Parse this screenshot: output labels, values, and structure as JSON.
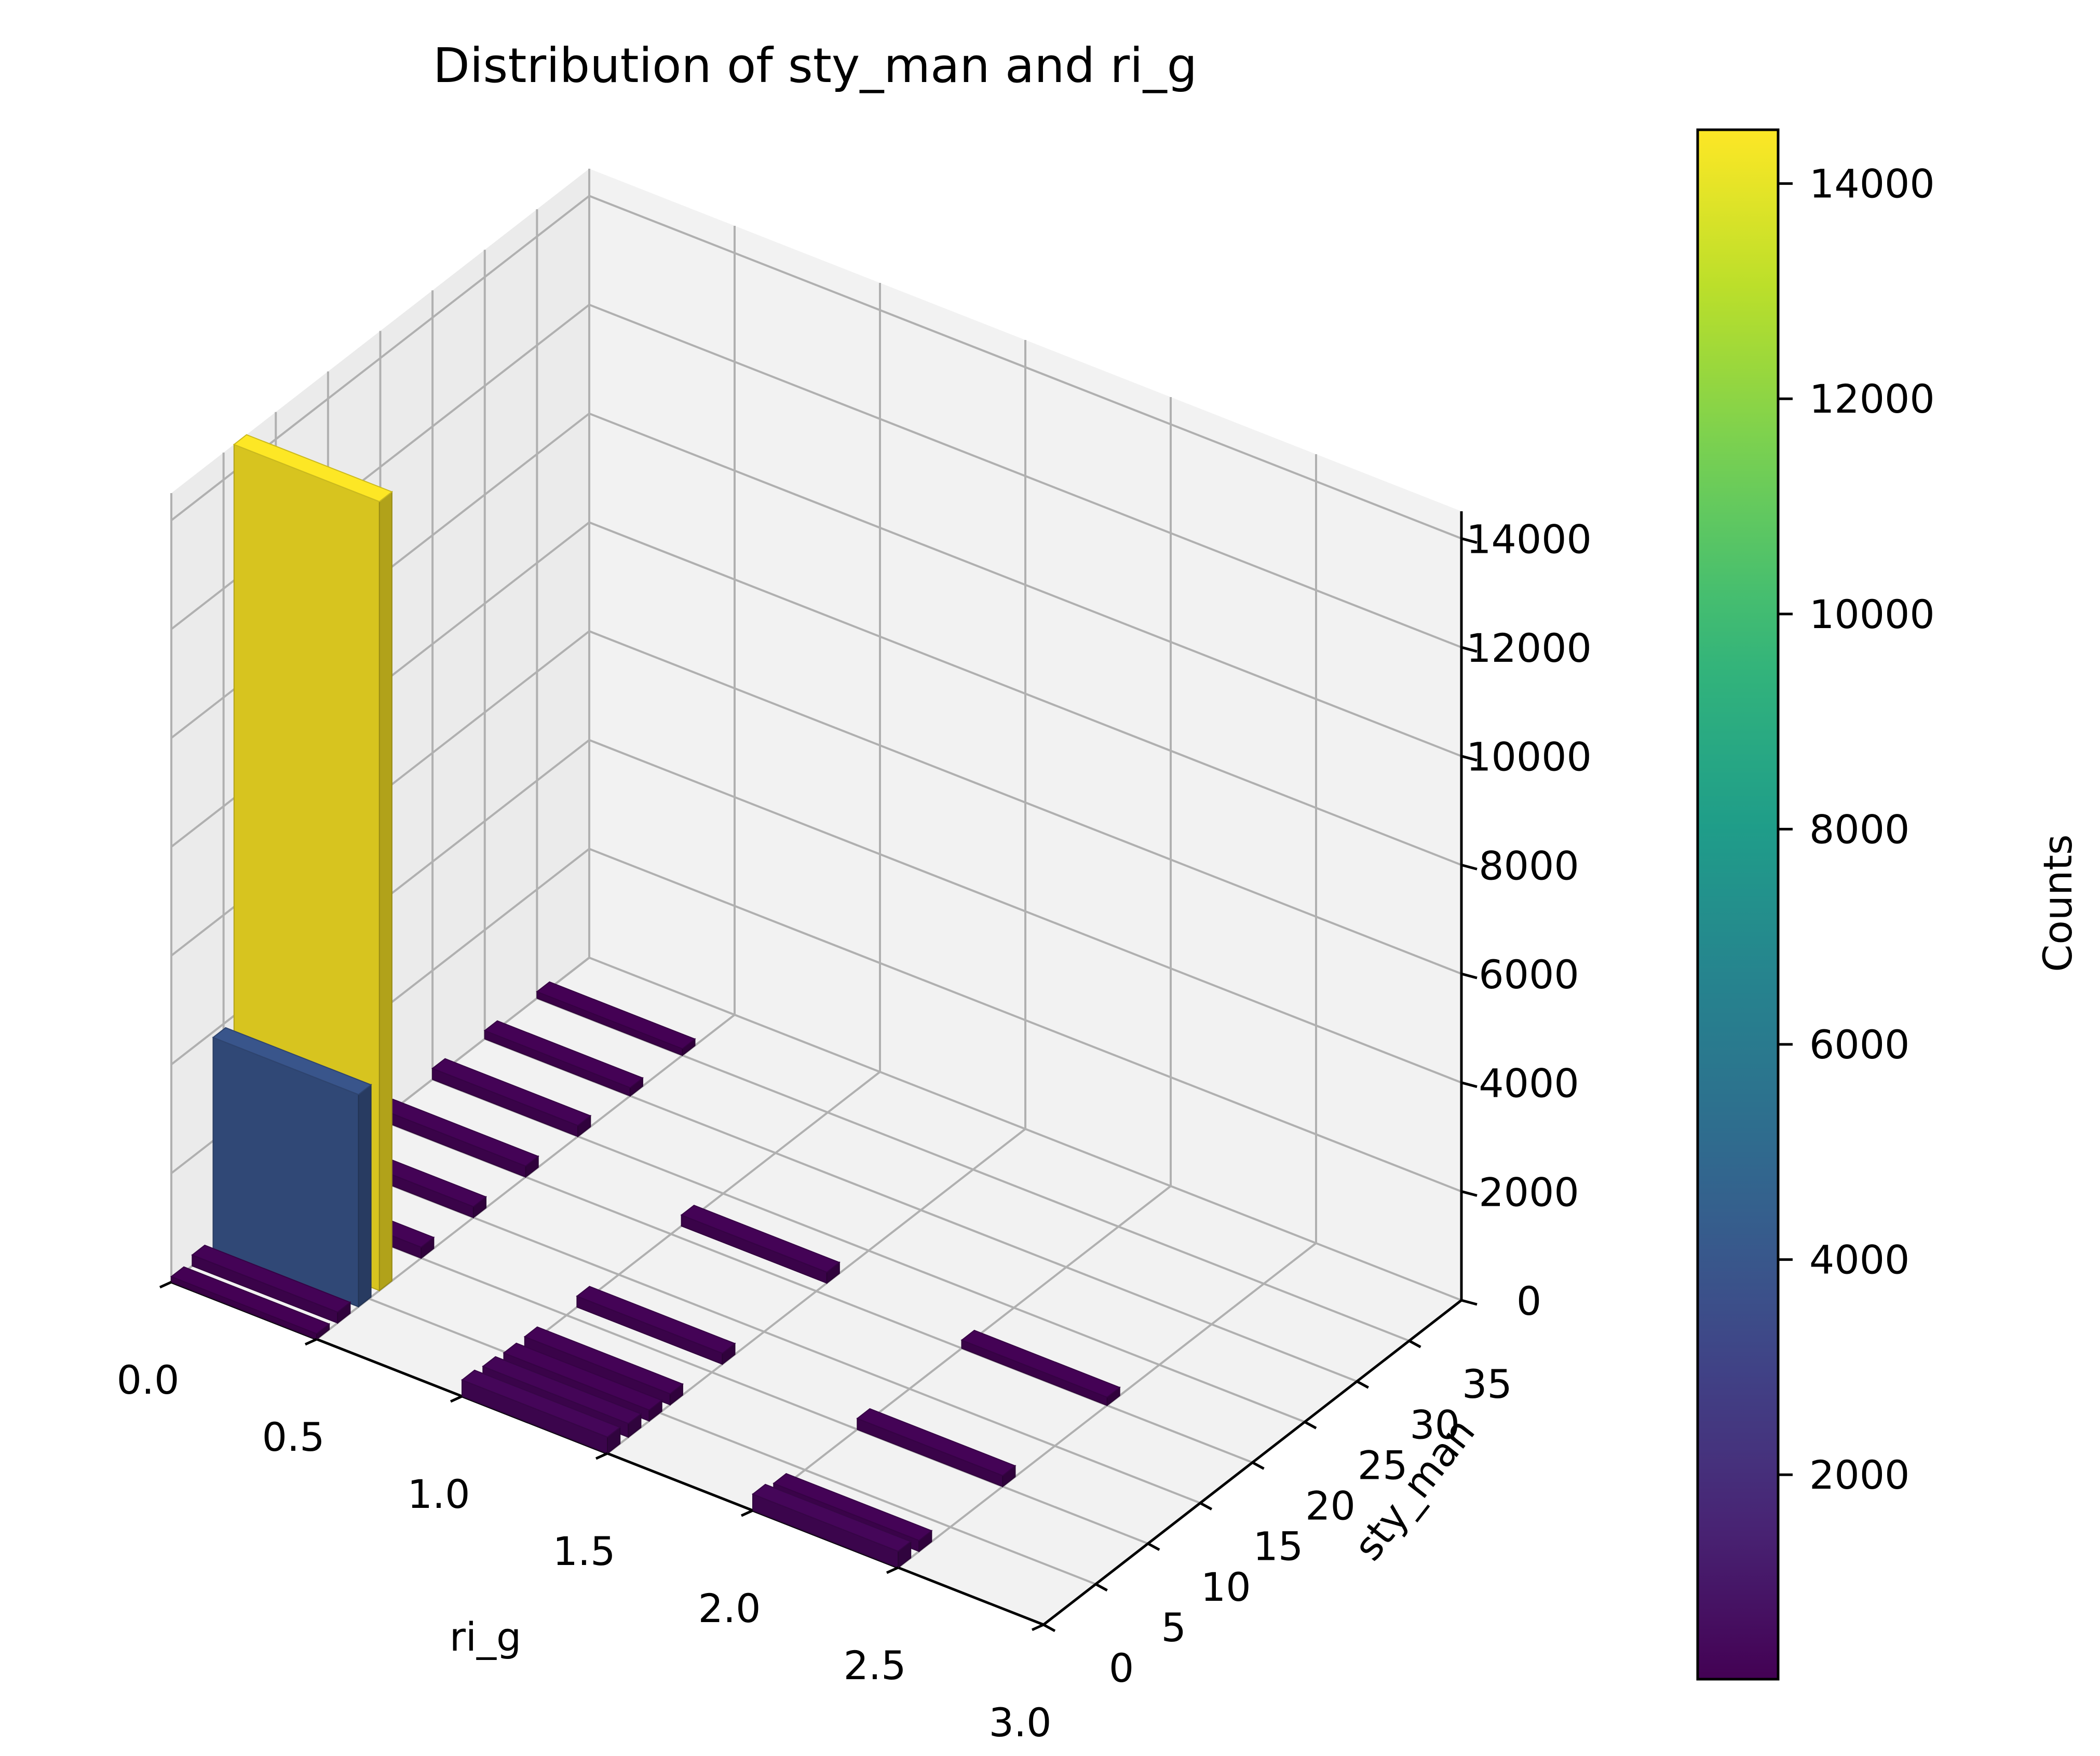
{
  "chart_data": {
    "type": "bar3d",
    "title": "Distribution of sty_man and ri_g",
    "xlabel": "ri_g",
    "ylabel": "sty_man",
    "zlabel": "",
    "xlim": [
      0.0,
      3.0
    ],
    "ylim": [
      0,
      40
    ],
    "zlim": [
      0,
      14500
    ],
    "x_ticks": [
      "0.0",
      "0.5",
      "1.0",
      "1.5",
      "2.0",
      "2.5",
      "3.0"
    ],
    "y_ticks": [
      "0",
      "5",
      "10",
      "15",
      "20",
      "25",
      "30",
      "35"
    ],
    "z_ticks": [
      "0",
      "2000",
      "4000",
      "6000",
      "8000",
      "10000",
      "12000",
      "14000"
    ],
    "colorbar": {
      "label": "Counts",
      "min": 100,
      "max": 14500,
      "ticks": [
        "2000",
        "4000",
        "6000",
        "8000",
        "10000",
        "12000",
        "14000"
      ],
      "colormap": "viridis"
    },
    "grid": true,
    "bars": [
      {
        "x": 0.0,
        "y": 0,
        "count": 100
      },
      {
        "x": 0.0,
        "y": 2,
        "count": 200
      },
      {
        "x": 0.0,
        "y": 4,
        "count": 3900
      },
      {
        "x": 0.0,
        "y": 6,
        "count": 14500
      },
      {
        "x": 0.0,
        "y": 10,
        "count": 200
      },
      {
        "x": 0.0,
        "y": 15,
        "count": 200
      },
      {
        "x": 0.0,
        "y": 20,
        "count": 200
      },
      {
        "x": 0.0,
        "y": 25,
        "count": 200
      },
      {
        "x": 0.0,
        "y": 30,
        "count": 150
      },
      {
        "x": 0.0,
        "y": 35,
        "count": 120
      },
      {
        "x": 1.0,
        "y": 0,
        "count": 300
      },
      {
        "x": 1.0,
        "y": 2,
        "count": 250
      },
      {
        "x": 1.0,
        "y": 4,
        "count": 200
      },
      {
        "x": 1.0,
        "y": 6,
        "count": 200
      },
      {
        "x": 1.0,
        "y": 11,
        "count": 200
      },
      {
        "x": 1.0,
        "y": 21,
        "count": 200
      },
      {
        "x": 2.0,
        "y": 0,
        "count": 300
      },
      {
        "x": 2.0,
        "y": 2,
        "count": 200
      },
      {
        "x": 2.0,
        "y": 10,
        "count": 200
      },
      {
        "x": 2.0,
        "y": 20,
        "count": 150
      }
    ]
  }
}
